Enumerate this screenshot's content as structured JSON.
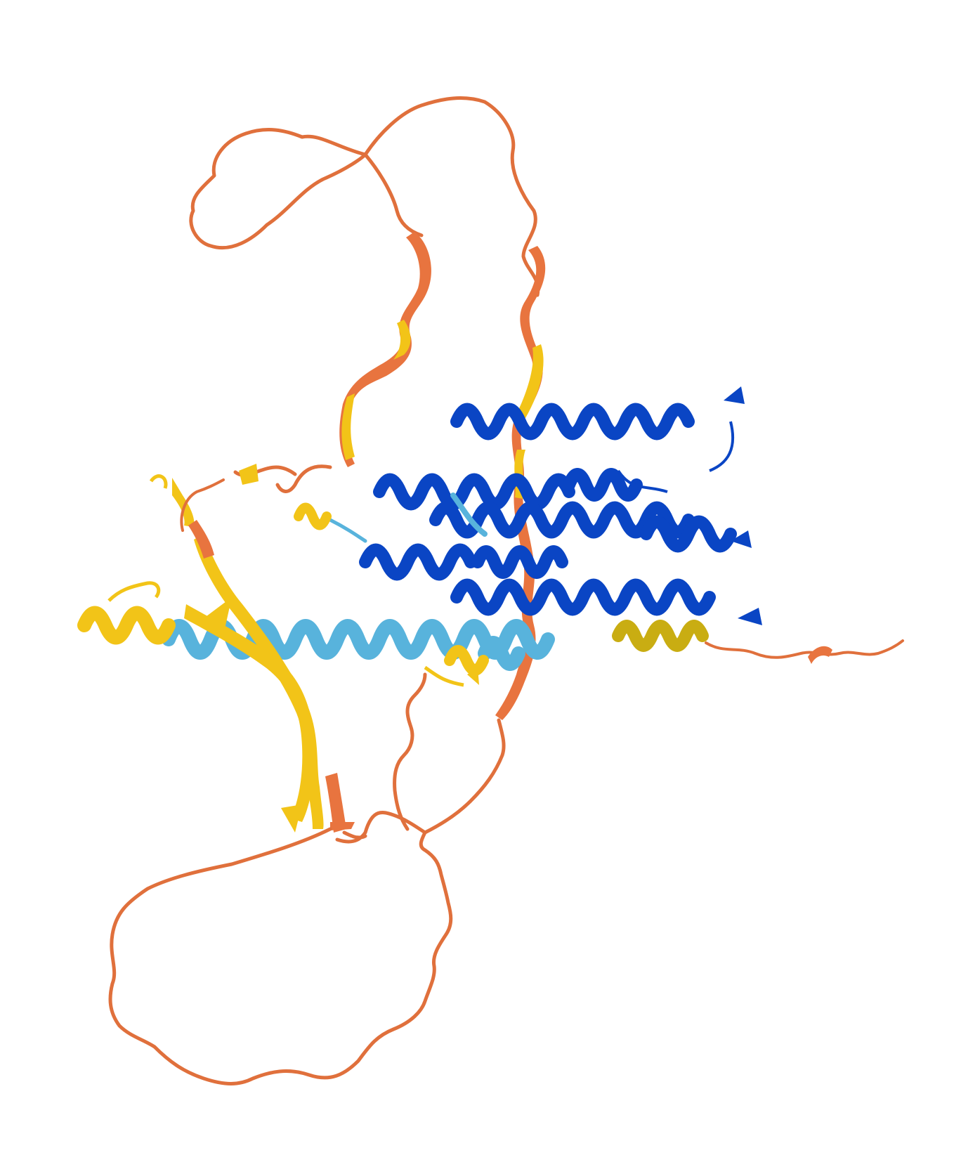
{
  "image": {
    "subject": "protein-structure-cartoon",
    "background_color": "#ffffff"
  },
  "palette": {
    "very_high_confidence": "#0053d6",
    "confident": "#65cbf3",
    "low_confidence": "#ffdb13",
    "very_low_confidence": "#ff7d45"
  },
  "render": {
    "coil_orange": "#e0703c",
    "strand_yellow": "#f2c418",
    "helix_dark_blue": "#0a45c4",
    "helix_light_blue": "#58b3dc",
    "helix_olive": "#c9ad12"
  }
}
